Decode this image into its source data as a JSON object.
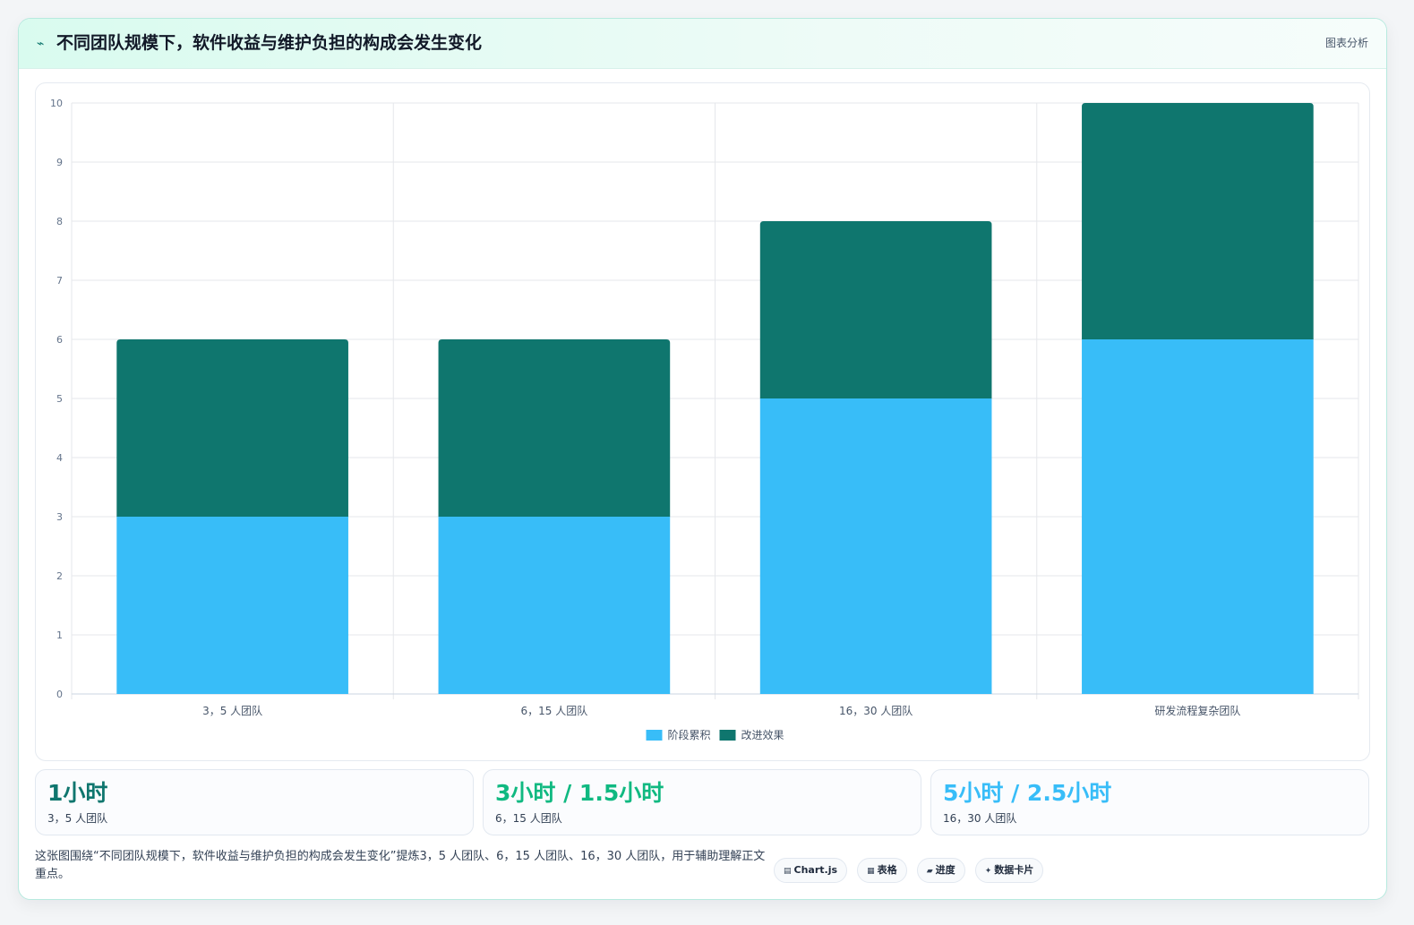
{
  "header": {
    "icon": "trend-icon",
    "title": "不同团队规模下，软件收益与维护负担的构成会发生变化",
    "tag": "图表分析"
  },
  "colors": {
    "series_a": "#38bdf8",
    "series_b": "#0f766e",
    "stat_1": "#0f766e",
    "stat_2": "#10b981",
    "stat_3": "#38bdf8"
  },
  "chart_data": {
    "type": "bar",
    "stacked": true,
    "categories": [
      "3，5 人团队",
      "6，15 人团队",
      "16，30 人团队",
      "研发流程复杂团队"
    ],
    "series": [
      {
        "name": "阶段累积",
        "values": [
          3,
          3,
          5,
          6
        ],
        "color": "#38bdf8"
      },
      {
        "name": "改进效果",
        "values": [
          3,
          3,
          3,
          4
        ],
        "color": "#0f766e"
      }
    ],
    "ylim": [
      0,
      10
    ],
    "yticks": [
      0,
      1,
      2,
      3,
      4,
      5,
      6,
      7,
      8,
      9,
      10
    ],
    "grid": true,
    "legend_position": "bottom"
  },
  "stats": [
    {
      "value": "1小时",
      "label": "3，5 人团队"
    },
    {
      "value": "3小时 / 1.5小时",
      "label": "6，15 人团队"
    },
    {
      "value": "5小时 / 2.5小时",
      "label": "16，30 人团队"
    }
  ],
  "footer": {
    "text": "这张图围绕“不同团队规模下，软件收益与维护负担的构成会发生变化”提炼3，5 人团队、6，15 人团队、16，30 人团队，用于辅助理解正文重点。",
    "chips": [
      {
        "icon": "▤",
        "label": "Chart.js"
      },
      {
        "icon": "▦",
        "label": "表格"
      },
      {
        "icon": "▰",
        "label": "进度"
      },
      {
        "icon": "✦",
        "label": "数据卡片"
      }
    ]
  }
}
